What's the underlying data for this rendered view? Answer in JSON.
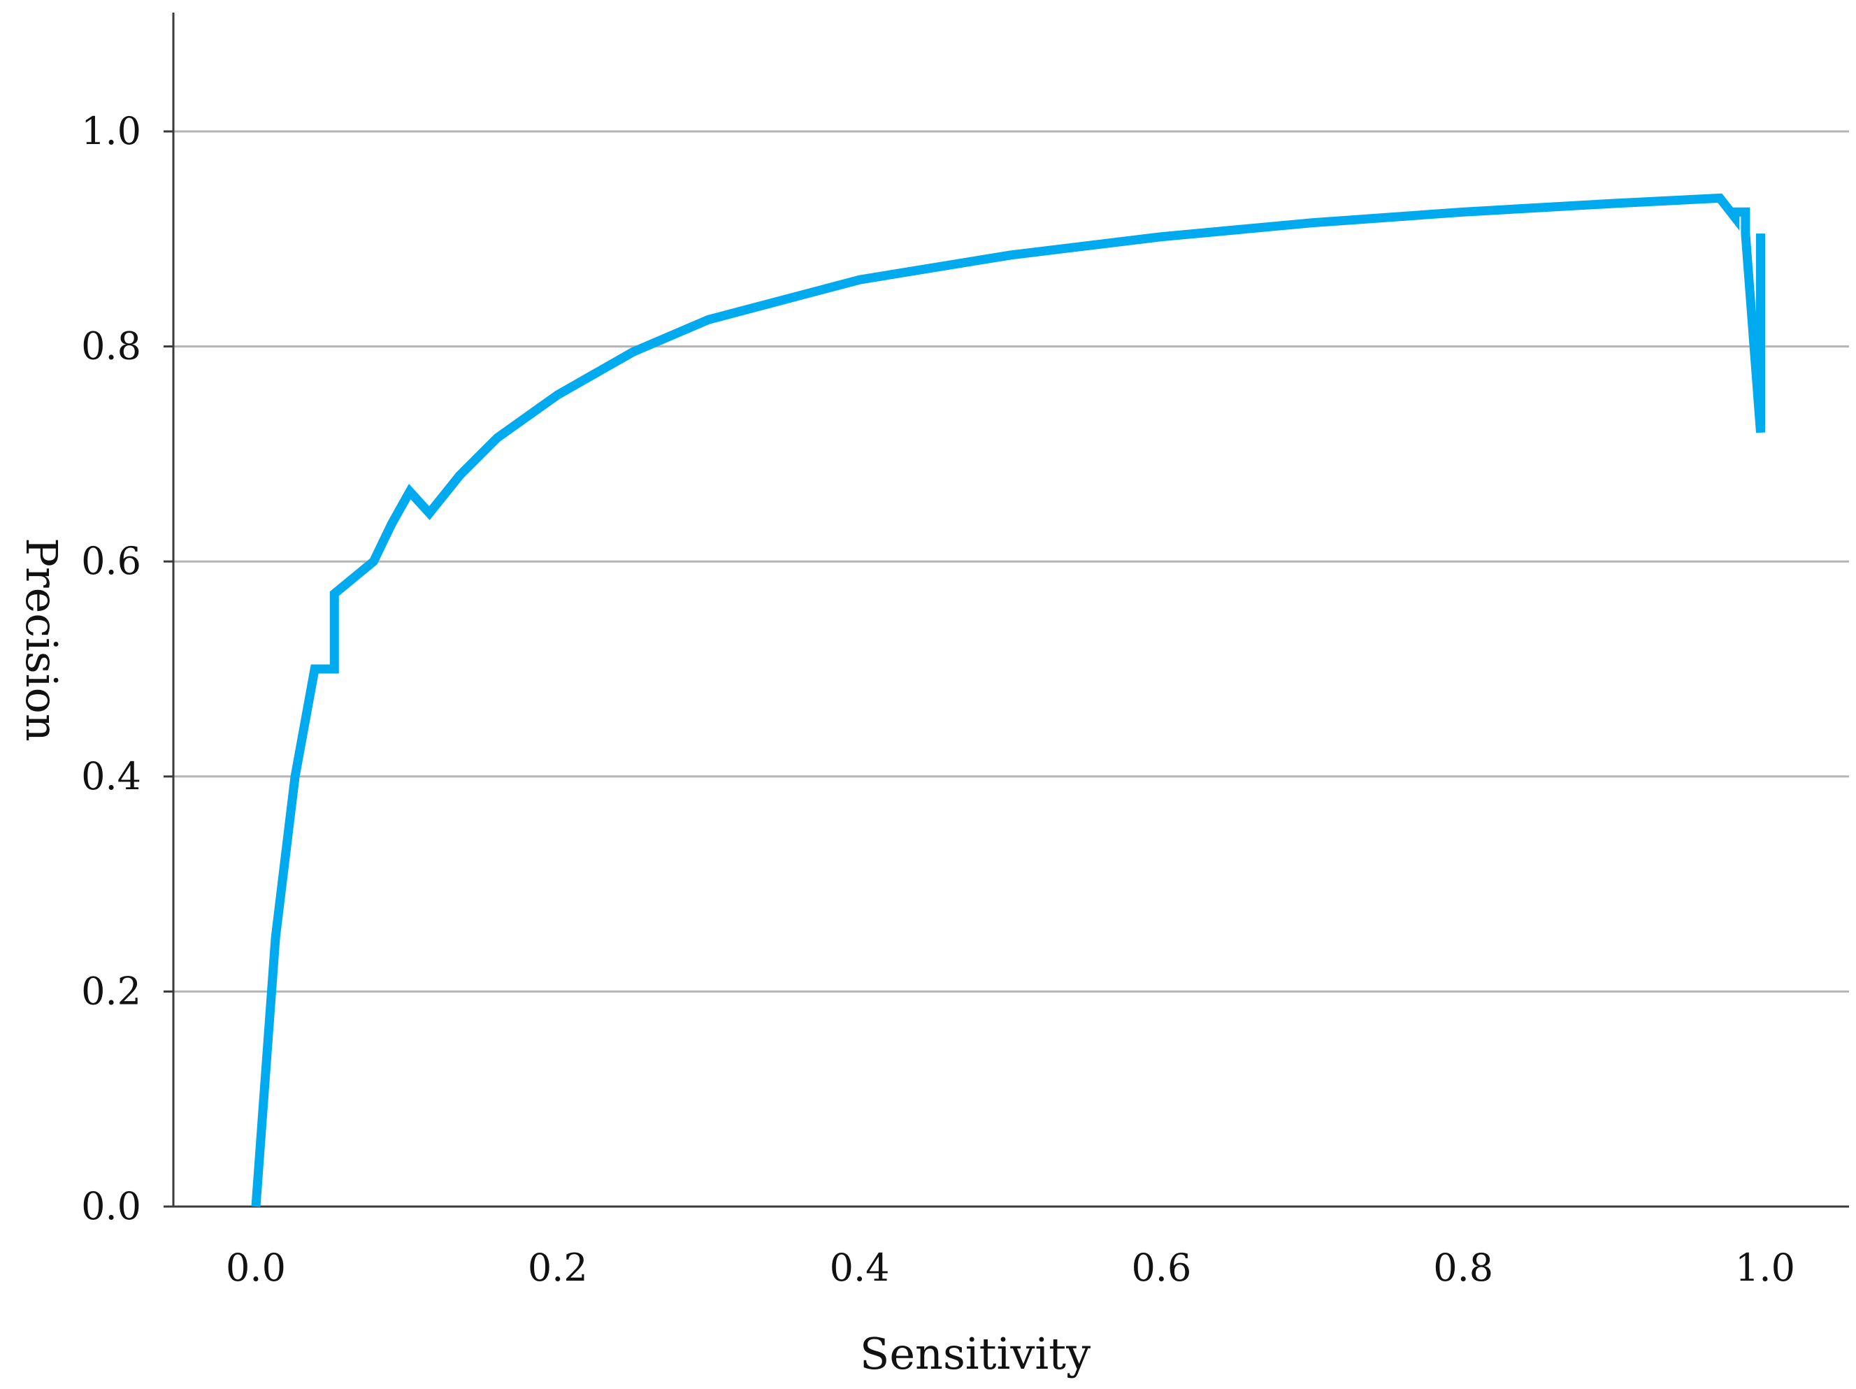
{
  "chart_data": {
    "type": "line",
    "title": "",
    "xlabel": "Sensitivity",
    "ylabel": "Precision",
    "xlim": [
      -0.05,
      1.05
    ],
    "ylim": [
      0.0,
      1.1
    ],
    "x_ticks": [
      "0.0",
      "0.2",
      "0.4",
      "0.6",
      "0.8",
      "1.0"
    ],
    "y_ticks": [
      "0.0",
      "0.2",
      "0.4",
      "0.6",
      "0.8",
      "1.0"
    ],
    "grid": "horizontal",
    "legend": "none",
    "series": [
      {
        "color": "#00aaee",
        "points": [
          [
            0.0,
            0.0
          ],
          [
            0.013,
            0.25
          ],
          [
            0.026,
            0.4
          ],
          [
            0.039,
            0.5
          ],
          [
            0.052,
            0.5
          ],
          [
            0.052,
            0.57
          ],
          [
            0.078,
            0.6
          ],
          [
            0.09,
            0.635
          ],
          [
            0.102,
            0.665
          ],
          [
            0.115,
            0.645
          ],
          [
            0.135,
            0.68
          ],
          [
            0.16,
            0.715
          ],
          [
            0.2,
            0.755
          ],
          [
            0.25,
            0.795
          ],
          [
            0.3,
            0.825
          ],
          [
            0.4,
            0.862
          ],
          [
            0.5,
            0.885
          ],
          [
            0.6,
            0.902
          ],
          [
            0.7,
            0.915
          ],
          [
            0.8,
            0.925
          ],
          [
            0.9,
            0.933
          ],
          [
            0.97,
            0.938
          ],
          [
            0.98,
            0.92
          ],
          [
            0.98,
            0.925
          ],
          [
            0.987,
            0.925
          ],
          [
            0.987,
            0.905
          ],
          [
            0.997,
            0.72
          ],
          [
            0.997,
            0.905
          ]
        ]
      }
    ]
  }
}
